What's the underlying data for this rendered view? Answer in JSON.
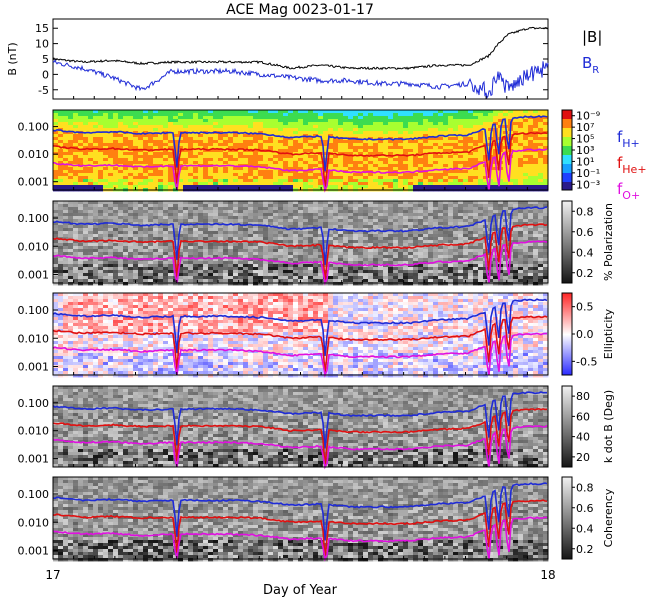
{
  "title": "ACE Mag 0023-01-17",
  "xlabel": "Day of Year",
  "x_ticks": [
    "17",
    "18"
  ],
  "legend_mag": {
    "b_total": "|B|",
    "b_r": "B",
    "b_r_sub": "R"
  },
  "legend_freq": [
    {
      "base": "f",
      "sub": "H+",
      "color": "#1f2bd6"
    },
    {
      "base": "f",
      "sub": "He+",
      "color": "#e01010"
    },
    {
      "base": "f",
      "sub": "O+",
      "color": "#e010e0"
    }
  ],
  "colors": {
    "b_total": "#000000",
    "b_r": "#1f2bd6",
    "f_h": "#1f2bd6",
    "f_he": "#e01010",
    "f_o": "#e010e0"
  },
  "chart_data": [
    {
      "type": "line",
      "panel": "magnetic field",
      "ylabel": "B (nT)",
      "ylim": [
        -8,
        18
      ],
      "y_ticks": [
        "15",
        "10",
        "5",
        "0",
        "-5"
      ],
      "x": [
        17.0,
        17.06,
        17.12,
        17.18,
        17.24,
        17.3,
        17.36,
        17.42,
        17.48,
        17.54,
        17.6,
        17.66,
        17.72,
        17.78,
        17.84,
        17.88,
        17.9,
        17.92,
        17.96,
        18.0
      ],
      "series": [
        {
          "name": "|B|",
          "values": [
            5,
            4,
            4.5,
            3.5,
            4,
            4,
            4,
            4,
            2,
            3,
            2,
            2,
            2,
            3,
            3,
            6,
            10,
            13,
            15,
            15
          ]
        },
        {
          "name": "B_R",
          "values": [
            4,
            2,
            -1,
            -5,
            1,
            1,
            1,
            0,
            -1,
            -2,
            -2,
            -3,
            -3,
            -4,
            -3,
            -6,
            0,
            -5,
            0,
            2
          ]
        }
      ]
    },
    {
      "type": "heatmap",
      "panel": "power spectrum",
      "colorbar_ticks": [
        "10⁻⁹",
        "10⁷",
        "10⁵",
        "10³",
        "10¹",
        "10⁻¹",
        "10⁻³"
      ],
      "y_ticks": [
        "0.100",
        "0.010",
        "0.001"
      ],
      "yscale": "log",
      "ylim": [
        0.0005,
        0.4
      ],
      "colormap": "rainbow"
    },
    {
      "type": "heatmap",
      "panel": "polarization",
      "colorbar_label": "% Polarization",
      "colorbar_ticks": [
        "0.8",
        "0.6",
        "0.4",
        "0.2"
      ],
      "y_ticks": [
        "0.100",
        "0.010",
        "0.001"
      ],
      "yscale": "log",
      "colormap": "gray"
    },
    {
      "type": "heatmap",
      "panel": "ellipticity",
      "colorbar_label": "Ellipticity",
      "colorbar_ticks": [
        "0.5",
        "0.0",
        "-0.5"
      ],
      "y_ticks": [
        "0.100",
        "0.010",
        "0.001"
      ],
      "yscale": "log",
      "colormap": "blue-white-red"
    },
    {
      "type": "heatmap",
      "panel": "wave normal angle",
      "colorbar_label": "k dot B (Deg)",
      "colorbar_ticks": [
        "80",
        "60",
        "40",
        "20"
      ],
      "y_ticks": [
        "0.100",
        "0.010",
        "0.001"
      ],
      "yscale": "log",
      "colormap": "gray"
    },
    {
      "type": "heatmap",
      "panel": "coherency",
      "colorbar_label": "Coherency",
      "colorbar_ticks": [
        "0.8",
        "0.6",
        "0.4",
        "0.2"
      ],
      "y_ticks": [
        "0.100",
        "0.010",
        "0.001"
      ],
      "yscale": "log",
      "colormap": "gray"
    }
  ],
  "gyrofrequencies": {
    "x": [
      17.0,
      17.06,
      17.12,
      17.18,
      17.24,
      17.3,
      17.36,
      17.42,
      17.48,
      17.54,
      17.6,
      17.66,
      17.72,
      17.78,
      17.84,
      17.88,
      17.9,
      17.92,
      17.96,
      18.0
    ],
    "f_H": [
      0.075,
      0.06,
      0.065,
      0.055,
      0.06,
      0.06,
      0.06,
      0.055,
      0.04,
      0.045,
      0.035,
      0.035,
      0.035,
      0.045,
      0.05,
      0.09,
      0.15,
      0.2,
      0.23,
      0.23
    ],
    "f_He": [
      0.019,
      0.015,
      0.016,
      0.014,
      0.015,
      0.015,
      0.015,
      0.014,
      0.01,
      0.011,
      0.009,
      0.009,
      0.009,
      0.011,
      0.012,
      0.022,
      0.038,
      0.05,
      0.058,
      0.058
    ],
    "f_O": [
      0.0047,
      0.0038,
      0.004,
      0.0034,
      0.0038,
      0.0038,
      0.0038,
      0.0034,
      0.0025,
      0.0028,
      0.0022,
      0.0022,
      0.0022,
      0.0028,
      0.003,
      0.0056,
      0.0094,
      0.0125,
      0.0144,
      0.0144
    ]
  }
}
